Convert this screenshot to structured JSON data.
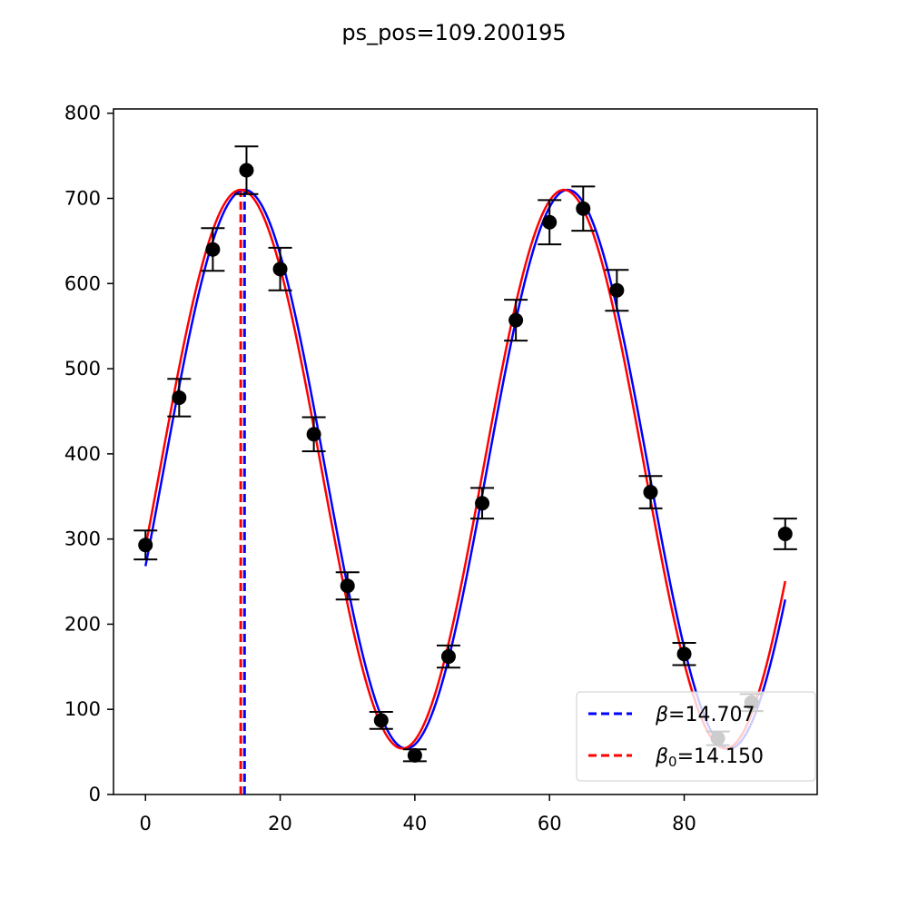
{
  "figure": {
    "title": "ps_pos=109.200195"
  },
  "chart_data": {
    "type": "line",
    "title": "ps_pos=109.200195",
    "xlabel": "",
    "ylabel": "",
    "xlim": [
      -4.75,
      99.75
    ],
    "ylim": [
      0,
      805
    ],
    "xticks": [
      0,
      20,
      40,
      60,
      80
    ],
    "yticks": [
      0,
      100,
      200,
      300,
      400,
      500,
      600,
      700,
      800
    ],
    "grid": false,
    "legend_position": "lower-right",
    "data_points": {
      "x": [
        0,
        5,
        10,
        15,
        20,
        25,
        30,
        35,
        40,
        45,
        50,
        55,
        60,
        65,
        70,
        75,
        80,
        85,
        90,
        95
      ],
      "y": [
        293,
        466,
        640,
        733,
        617,
        423,
        245,
        87,
        46,
        162,
        342,
        557,
        672,
        688,
        592,
        355,
        165,
        66,
        108,
        306
      ],
      "err": [
        17,
        22,
        25,
        28,
        25,
        20,
        16,
        10,
        7,
        13,
        18,
        24,
        26,
        26,
        24,
        19,
        13,
        8,
        10,
        18
      ],
      "color": "#000000"
    },
    "series": [
      {
        "name": "β=14.707",
        "label_main": "β",
        "label_sub": "",
        "label_value": "=14.707",
        "color": "#0000ff",
        "center": 14.707,
        "amplitude": 328,
        "offset": 382,
        "period": 48,
        "vline": 14.707
      },
      {
        "name": "β₀=14.150",
        "label_main": "β",
        "label_sub": "0",
        "label_value": "=14.150",
        "color": "#ff0000",
        "center": 14.15,
        "amplitude": 328,
        "offset": 382,
        "period": 48,
        "vline": 14.15
      }
    ],
    "x_range": [
      0,
      95
    ]
  }
}
